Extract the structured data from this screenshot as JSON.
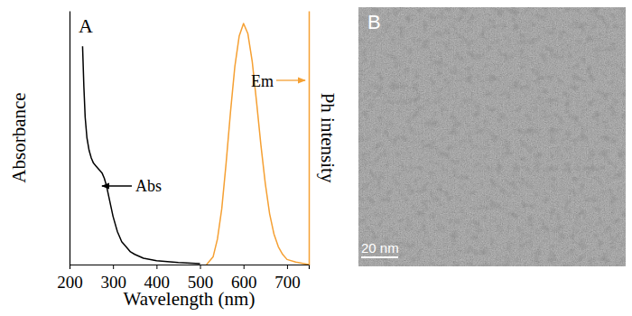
{
  "chart_data": {
    "type": "line",
    "title": "A",
    "x_label": "Wavelength (nm)",
    "y_label": "Absorbance",
    "y2_label": "Ph intensity",
    "xlim": [
      200,
      750
    ],
    "xticks": [
      200,
      300,
      400,
      500,
      600,
      700
    ],
    "ylim": [
      0,
      1
    ],
    "y2lim": [
      0,
      1
    ],
    "tick_labels": "x",
    "series": [
      {
        "name": "Abs",
        "color": "#000000",
        "x": [
          230,
          233,
          236,
          240,
          245,
          250,
          255,
          260,
          265,
          270,
          275,
          280,
          285,
          290,
          295,
          300,
          310,
          320,
          330,
          340,
          350,
          370,
          400,
          450,
          500
        ],
        "values": [
          0.86,
          0.7,
          0.58,
          0.5,
          0.45,
          0.42,
          0.4,
          0.39,
          0.38,
          0.37,
          0.36,
          0.34,
          0.31,
          0.27,
          0.23,
          0.19,
          0.13,
          0.09,
          0.07,
          0.05,
          0.04,
          0.025,
          0.015,
          0.008,
          0.004
        ]
      },
      {
        "name": "Em",
        "color": "#f5a033",
        "axis": "y2",
        "x": [
          515,
          530,
          540,
          550,
          560,
          570,
          580,
          590,
          600,
          610,
          620,
          630,
          640,
          650,
          660,
          670,
          680,
          690,
          700,
          720,
          750
        ],
        "values": [
          0,
          0.03,
          0.1,
          0.22,
          0.4,
          0.6,
          0.78,
          0.9,
          0.95,
          0.91,
          0.8,
          0.64,
          0.47,
          0.32,
          0.2,
          0.12,
          0.07,
          0.04,
          0.02,
          0.01,
          0
        ]
      }
    ]
  },
  "image": {
    "label": "B",
    "scale_bar": "20 nm"
  }
}
